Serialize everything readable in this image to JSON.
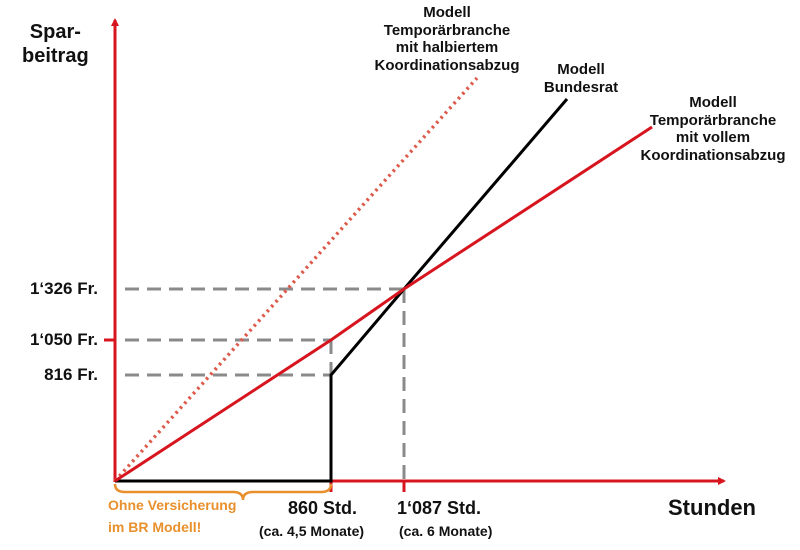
{
  "colors": {
    "red": "#d7151f",
    "black": "#000000",
    "dashed": "#8a8a8a",
    "orange": "#e8902c"
  },
  "y_axis_label": [
    "Spar-",
    "beitrag"
  ],
  "x_axis_label": "Stunden",
  "y_ticks": [
    {
      "value": 1326,
      "label": "1‘326 Fr."
    },
    {
      "value": 1050,
      "label": "1‘050 Fr."
    },
    {
      "value": 816,
      "label": "816 Fr."
    }
  ],
  "x_ticks": [
    {
      "value": 860,
      "label": "860 Std.",
      "sub": "(ca. 4,5 Monate)"
    },
    {
      "value": 1087,
      "label": "1‘087 Std.",
      "sub": "(ca. 6 Monate)"
    }
  ],
  "brace_note": [
    "Ohne Versicherung",
    "im BR Modell!"
  ],
  "chart_data": {
    "type": "line",
    "xlabel": "Stunden",
    "ylabel": "Spar-beitrag",
    "series": [
      {
        "name": "Modell Temporärbranche mit halbiertem Koordinationsabzug",
        "style": "dotted",
        "color": "#d7151f",
        "points": [
          [
            0,
            0
          ]
        ]
      },
      {
        "name": "Modell Bundesrat",
        "style": "solid",
        "color": "#000000",
        "points": [
          [
            0,
            0
          ],
          [
            860,
            0
          ],
          [
            860,
            816
          ],
          [
            1087,
            1326
          ]
        ]
      },
      {
        "name": "Modell Temporärbranche mit vollem Koordinationsabzug",
        "style": "solid",
        "color": "#d7151f",
        "points": [
          [
            0,
            0
          ],
          [
            860,
            1050
          ],
          [
            1087,
            1326
          ]
        ]
      }
    ],
    "annotations": [
      [
        "Modell",
        "Temporärbranche",
        "mit halbiertem",
        "Koordinationsabzug"
      ],
      [
        "Modell",
        "Bundesrat"
      ],
      [
        "Modell",
        "Temporärbranche",
        "mit vollem",
        "Koordinationsabzug"
      ]
    ]
  }
}
